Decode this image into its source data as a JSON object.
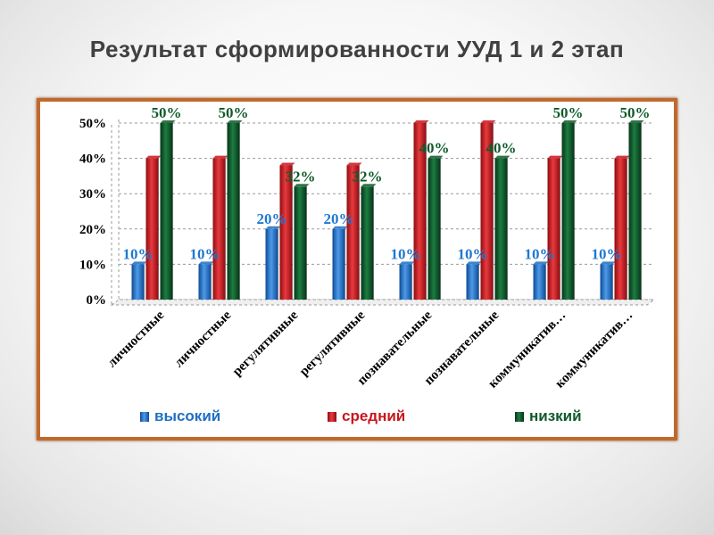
{
  "slide": {
    "title": "Результат сформированности УУД  1 и 2 этап"
  },
  "chart_data": {
    "type": "bar",
    "categories": [
      "личностные",
      "личностные",
      "регулятивные",
      "регулятивные",
      "познавательные",
      "познавательные",
      "коммуникатив…",
      "коммуникатив…"
    ],
    "series": [
      {
        "name": "высокий",
        "values": [
          10,
          10,
          20,
          20,
          10,
          10,
          10,
          10
        ],
        "labels": [
          "10%",
          "10%",
          "20%",
          "20%",
          "10%",
          "10%",
          "10%",
          "10%"
        ],
        "color": "#1f6fc4"
      },
      {
        "name": "средний",
        "values": [
          40,
          40,
          38,
          38,
          50,
          50,
          40,
          40
        ],
        "labels": [],
        "color": "#c8161d"
      },
      {
        "name": "низкий",
        "values": [
          50,
          50,
          32,
          32,
          40,
          40,
          50,
          50
        ],
        "labels": [
          "50%",
          "50%",
          "32%",
          "32%",
          "40%",
          "40%",
          "50%",
          "50%"
        ],
        "color": "#0f5a2a"
      }
    ],
    "yticks": [
      "0%",
      "10%",
      "20%",
      "30%",
      "40%",
      "50%"
    ],
    "ylim": [
      0,
      50
    ],
    "grid": true,
    "legend_position": "bottom",
    "colors": {
      "label_high": "#1f78d1",
      "label_low": "#0f5a2a"
    }
  }
}
